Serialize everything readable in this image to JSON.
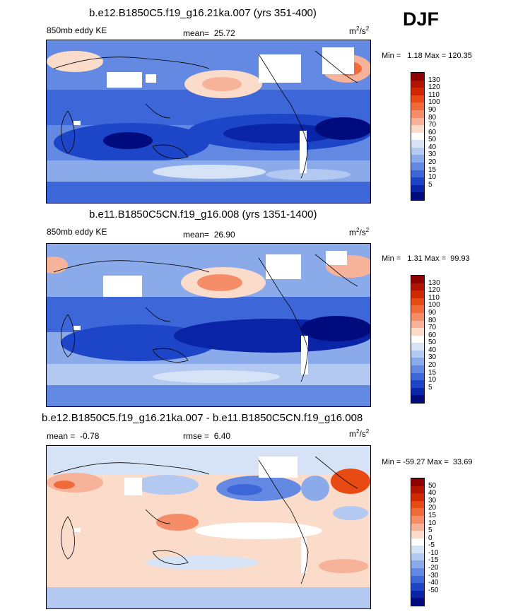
{
  "season": "DJF",
  "units_base": "m",
  "units_sup": "2",
  "units_mid": "/s",
  "panels": [
    {
      "title": "b.e12.B1850C5.f19_g16.21ka.007 (yrs 351-400)",
      "left_label": "850mb eddy KE",
      "mean_label": "mean=",
      "mean_value": "25.72",
      "minmax_min_label": "Min =",
      "minmax_min": "1.18",
      "minmax_max_label": "Max =",
      "minmax_max": "120.35",
      "colorbar_ticks": [
        "130",
        "120",
        "110",
        "100",
        "90",
        "80",
        "70",
        "60",
        "50",
        "40",
        "30",
        "20",
        "15",
        "10",
        "5"
      ],
      "colorbar_colors": [
        "#8b0000",
        "#b11500",
        "#d02800",
        "#e84a14",
        "#f06a3a",
        "#f58e68",
        "#f7b39a",
        "#fbdccb",
        "#ffffff",
        "#d6e3f7",
        "#b3c9f1",
        "#8aaaea",
        "#6389e2",
        "#3d67d9",
        "#1d45c8",
        "#0a24a8",
        "#000b7d"
      ]
    },
    {
      "title": "b.e11.B1850C5CN.f19_g16.008 (yrs 1351-1400)",
      "left_label": "850mb eddy KE",
      "mean_label": "mean=",
      "mean_value": "26.90",
      "minmax_min_label": "Min =",
      "minmax_min": "1.31",
      "minmax_max_label": "Max =",
      "minmax_max": "99.93",
      "colorbar_ticks": [
        "130",
        "120",
        "110",
        "100",
        "90",
        "80",
        "70",
        "60",
        "50",
        "40",
        "30",
        "20",
        "15",
        "10",
        "5"
      ],
      "colorbar_colors": [
        "#8b0000",
        "#b11500",
        "#d02800",
        "#e84a14",
        "#f06a3a",
        "#f58e68",
        "#f7b39a",
        "#fbdccb",
        "#ffffff",
        "#d6e3f7",
        "#b3c9f1",
        "#8aaaea",
        "#6389e2",
        "#3d67d9",
        "#1d45c8",
        "#0a24a8",
        "#000b7d"
      ]
    },
    {
      "title": "b.e12.B1850C5.f19_g16.21ka.007 - b.e11.B1850C5CN.f19_g16.008",
      "left_label": "mean =",
      "left_value": "-0.78",
      "mean_label": "rmse =",
      "mean_value": "6.40",
      "minmax_min_label": "Min =",
      "minmax_min": "-59.27",
      "minmax_max_label": "Max =",
      "minmax_max": "33.69",
      "colorbar_ticks": [
        "50",
        "40",
        "30",
        "20",
        "15",
        "10",
        "5",
        "0",
        "-5",
        "-10",
        "-15",
        "-20",
        "-30",
        "-40",
        "-50"
      ],
      "colorbar_colors": [
        "#8b0000",
        "#b11500",
        "#d02800",
        "#e84a14",
        "#f06a3a",
        "#f58e68",
        "#f7b39a",
        "#fbdccb",
        "#ffffff",
        "#d6e3f7",
        "#b3c9f1",
        "#8aaaea",
        "#6389e2",
        "#3d67d9",
        "#1d45c8",
        "#0a24a8",
        "#000b7d"
      ]
    }
  ]
}
